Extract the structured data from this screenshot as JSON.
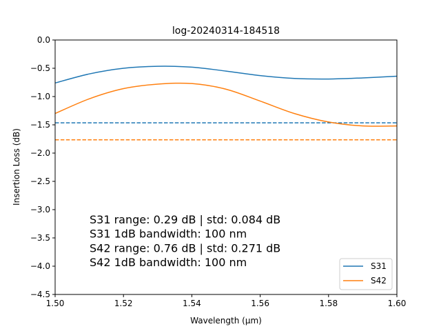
{
  "chart_data": {
    "type": "line",
    "title": "log-20240314-184518",
    "xlabel": "Wavelength (μm)",
    "ylabel": "Insertion Loss (dB)",
    "xlim": [
      1.5,
      1.6
    ],
    "ylim": [
      -4.5,
      0.0
    ],
    "xticks": [
      1.5,
      1.52,
      1.54,
      1.56,
      1.58,
      1.6
    ],
    "xtick_labels": [
      "1.50",
      "1.52",
      "1.54",
      "1.56",
      "1.58",
      "1.60"
    ],
    "yticks": [
      0.0,
      -0.5,
      -1.0,
      -1.5,
      -2.0,
      -2.5,
      -3.0,
      -3.5,
      -4.0,
      -4.5
    ],
    "ytick_labels": [
      "0.0",
      "−0.5",
      "−1.0",
      "−1.5",
      "−2.0",
      "−2.5",
      "−3.0",
      "−3.5",
      "−4.0",
      "−4.5"
    ],
    "grid": false,
    "legend_position": "lower-right",
    "x": [
      1.5,
      1.51,
      1.52,
      1.53,
      1.54,
      1.55,
      1.56,
      1.57,
      1.58,
      1.59,
      1.6
    ],
    "series": [
      {
        "name": "S31",
        "color": "#1f77b4",
        "values": [
          -0.76,
          -0.6,
          -0.5,
          -0.465,
          -0.48,
          -0.55,
          -0.63,
          -0.68,
          -0.69,
          -0.67,
          -0.64
        ]
      },
      {
        "name": "S42",
        "color": "#ff7f0e",
        "values": [
          -1.3,
          -1.04,
          -0.86,
          -0.78,
          -0.77,
          -0.87,
          -1.08,
          -1.3,
          -1.45,
          -1.52,
          -1.52
        ]
      }
    ],
    "reference_lines": [
      {
        "series": "S31",
        "y": -1.465,
        "style": "dashed",
        "color": "#1f77b4"
      },
      {
        "series": "S42",
        "y": -1.765,
        "style": "dashed",
        "color": "#ff7f0e"
      }
    ],
    "annotations": [
      "S31 range: 0.29 dB | std: 0.084 dB",
      "S31 1dB bandwidth: 100 nm",
      "S42 range: 0.76 dB | std: 0.271 dB",
      "S42 1dB bandwidth: 100 nm"
    ]
  }
}
